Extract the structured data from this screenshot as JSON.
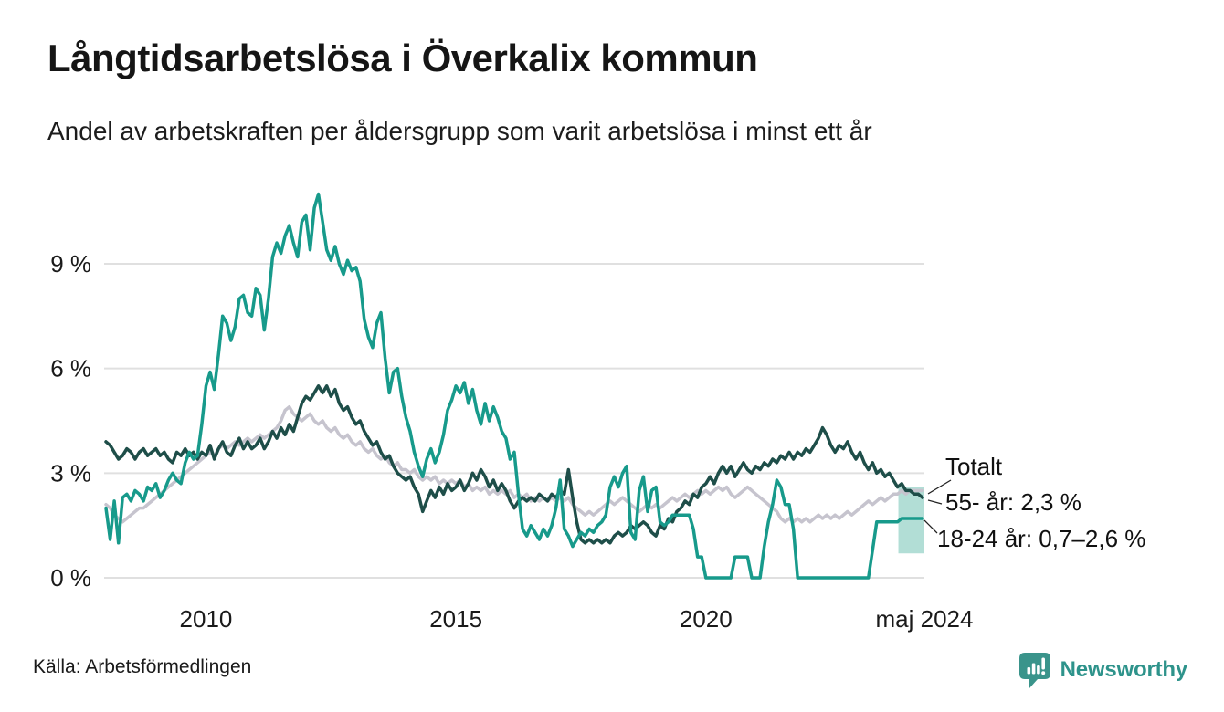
{
  "header": {
    "title": "Långtidsarbetslösa i Överkalix kommun",
    "subtitle": "Andel av arbetskraften per åldersgrupp som varit arbetslösa i minst ett år"
  },
  "footer": {
    "source": "Källa: Arbetsförmedlingen",
    "brand": "Newsworthy",
    "brand_color": "#2e938b"
  },
  "chart_data": {
    "type": "line",
    "title": "Långtidsarbetslösa i Överkalix kommun",
    "subtitle": "Andel av arbetskraften per åldersgrupp som varit arbetslösa i minst ett år",
    "x_unit": "decimal-year, monthly points Jan 2008 – May 2024",
    "x_start": 2008.0,
    "x_step": 0.0833333,
    "xlim": [
      2008.0,
      2024.37
    ],
    "ylim": [
      0,
      9
    ],
    "grid": true,
    "background": "#ffffff",
    "grid_color": "#e0e0e0",
    "y_ticks": [
      {
        "value": 0,
        "label": "0 %"
      },
      {
        "value": 3,
        "label": "3 %"
      },
      {
        "value": 6,
        "label": "6 %"
      },
      {
        "value": 9,
        "label": "9 %"
      }
    ],
    "x_ticks": [
      {
        "value": 2010,
        "label": "2010"
      },
      {
        "value": 2015,
        "label": "2015"
      },
      {
        "value": 2020,
        "label": "2020"
      },
      {
        "value": 2024.37,
        "label": "maj 2024"
      }
    ],
    "series": [
      {
        "name": "Totalt",
        "color": "#c6c4ce",
        "width": 3.5,
        "values": [
          2.1,
          2.0,
          1.8,
          1.7,
          1.6,
          1.7,
          1.8,
          1.9,
          2.0,
          2.0,
          2.1,
          2.2,
          2.3,
          2.4,
          2.5,
          2.6,
          2.7,
          2.8,
          2.9,
          3.0,
          3.1,
          3.2,
          3.3,
          3.4,
          3.5,
          3.6,
          3.5,
          3.7,
          3.8,
          3.7,
          3.8,
          3.9,
          3.8,
          3.9,
          4.0,
          3.9,
          4.0,
          4.1,
          4.0,
          4.1,
          4.2,
          4.3,
          4.5,
          4.8,
          4.9,
          4.7,
          4.6,
          4.5,
          4.6,
          4.7,
          4.5,
          4.4,
          4.5,
          4.3,
          4.2,
          4.3,
          4.1,
          4.0,
          4.1,
          3.9,
          3.8,
          3.9,
          3.7,
          3.6,
          3.7,
          3.5,
          3.4,
          3.5,
          3.3,
          3.2,
          3.3,
          3.1,
          3.1,
          3.0,
          3.1,
          2.9,
          2.8,
          2.9,
          2.8,
          2.9,
          2.7,
          2.8,
          2.7,
          2.8,
          2.7,
          2.8,
          2.6,
          2.7,
          2.5,
          2.6,
          2.5,
          2.6,
          2.4,
          2.5,
          2.4,
          2.5,
          2.4,
          2.5,
          2.3,
          2.4,
          2.3,
          2.4,
          2.2,
          2.3,
          2.2,
          2.3,
          2.2,
          2.3,
          2.2,
          2.3,
          2.2,
          2.3,
          2.1,
          2.0,
          1.9,
          1.8,
          1.9,
          1.8,
          1.9,
          2.0,
          2.1,
          2.2,
          2.1,
          2.2,
          2.3,
          2.2,
          2.1,
          2.0,
          1.9,
          2.0,
          2.1,
          2.0,
          2.1,
          2.0,
          2.1,
          2.2,
          2.3,
          2.2,
          2.3,
          2.4,
          2.3,
          2.4,
          2.5,
          2.4,
          2.5,
          2.4,
          2.5,
          2.6,
          2.5,
          2.6,
          2.4,
          2.3,
          2.4,
          2.5,
          2.6,
          2.5,
          2.4,
          2.3,
          2.2,
          2.1,
          2.0,
          1.9,
          1.7,
          1.6,
          1.7,
          1.6,
          1.7,
          1.6,
          1.7,
          1.6,
          1.7,
          1.8,
          1.7,
          1.8,
          1.7,
          1.8,
          1.7,
          1.8,
          1.9,
          1.8,
          1.9,
          2.0,
          2.1,
          2.2,
          2.1,
          2.2,
          2.3,
          2.2,
          2.3,
          2.4,
          2.4,
          2.5,
          2.4,
          2.5,
          2.5,
          2.5,
          2.5
        ]
      },
      {
        "name": "55- år",
        "color": "#1e4e49",
        "width": 3.5,
        "values": [
          3.9,
          3.8,
          3.6,
          3.4,
          3.5,
          3.7,
          3.6,
          3.4,
          3.6,
          3.7,
          3.5,
          3.6,
          3.7,
          3.5,
          3.6,
          3.4,
          3.3,
          3.6,
          3.5,
          3.7,
          3.5,
          3.6,
          3.4,
          3.6,
          3.5,
          3.8,
          3.4,
          3.7,
          3.9,
          3.6,
          3.5,
          3.8,
          4.0,
          3.7,
          3.9,
          3.7,
          3.8,
          4.0,
          3.7,
          3.9,
          4.2,
          4.0,
          4.3,
          4.1,
          4.4,
          4.2,
          4.6,
          5.0,
          5.2,
          5.1,
          5.3,
          5.5,
          5.3,
          5.5,
          5.2,
          5.4,
          5.0,
          4.8,
          4.9,
          4.6,
          4.4,
          4.5,
          4.2,
          4.0,
          3.8,
          3.9,
          3.6,
          3.4,
          3.5,
          3.2,
          3.0,
          2.9,
          2.8,
          2.9,
          2.6,
          2.4,
          1.9,
          2.2,
          2.5,
          2.3,
          2.6,
          2.4,
          2.7,
          2.5,
          2.6,
          2.8,
          2.5,
          2.7,
          3.0,
          2.8,
          3.1,
          2.9,
          2.6,
          2.8,
          2.5,
          2.7,
          2.5,
          2.2,
          2.0,
          2.2,
          2.3,
          2.2,
          2.3,
          2.2,
          2.4,
          2.3,
          2.2,
          2.4,
          2.3,
          2.5,
          2.4,
          3.1,
          2.3,
          1.6,
          1.1,
          1.0,
          1.1,
          1.0,
          1.1,
          1.0,
          1.1,
          1.0,
          1.2,
          1.3,
          1.2,
          1.3,
          1.5,
          1.4,
          1.5,
          1.6,
          1.5,
          1.3,
          1.2,
          1.5,
          1.4,
          1.7,
          1.6,
          1.9,
          2.0,
          2.2,
          2.1,
          2.4,
          2.3,
          2.6,
          2.7,
          2.9,
          2.7,
          3.0,
          3.2,
          3.0,
          3.2,
          2.9,
          3.1,
          3.3,
          3.1,
          3.0,
          3.2,
          3.1,
          3.3,
          3.2,
          3.4,
          3.3,
          3.5,
          3.4,
          3.6,
          3.4,
          3.6,
          3.5,
          3.7,
          3.6,
          3.8,
          4.0,
          4.3,
          4.1,
          3.8,
          3.6,
          3.8,
          3.7,
          3.9,
          3.6,
          3.4,
          3.6,
          3.3,
          3.1,
          3.3,
          3.0,
          3.1,
          2.9,
          3.0,
          2.8,
          2.6,
          2.7,
          2.5,
          2.5,
          2.4,
          2.4,
          2.3
        ]
      },
      {
        "name": "18-24 år",
        "color": "#179a8b",
        "width": 3.5,
        "values": [
          2.0,
          1.1,
          2.2,
          1.0,
          2.3,
          2.4,
          2.2,
          2.5,
          2.4,
          2.2,
          2.6,
          2.5,
          2.7,
          2.3,
          2.5,
          2.8,
          3.0,
          2.8,
          2.7,
          3.3,
          3.6,
          3.4,
          3.5,
          4.4,
          5.5,
          5.9,
          5.4,
          6.4,
          7.5,
          7.3,
          6.8,
          7.2,
          8.0,
          8.1,
          7.6,
          7.5,
          8.3,
          8.1,
          7.1,
          8.0,
          9.2,
          9.6,
          9.3,
          9.8,
          10.1,
          9.6,
          9.2,
          10.2,
          10.4,
          9.4,
          10.6,
          11.0,
          10.2,
          9.4,
          9.1,
          9.5,
          9.0,
          8.7,
          9.1,
          8.8,
          8.9,
          8.5,
          7.4,
          6.9,
          6.6,
          7.3,
          7.6,
          6.3,
          5.3,
          5.9,
          6.0,
          5.2,
          4.6,
          4.2,
          3.6,
          3.2,
          2.9,
          3.4,
          3.7,
          3.3,
          3.6,
          4.1,
          4.8,
          5.1,
          5.5,
          5.3,
          5.6,
          5.0,
          5.4,
          4.8,
          4.4,
          5.0,
          4.5,
          4.9,
          4.6,
          4.2,
          4.0,
          3.4,
          3.6,
          2.4,
          1.4,
          1.2,
          1.5,
          1.3,
          1.1,
          1.4,
          1.2,
          1.5,
          2.0,
          2.8,
          1.4,
          1.2,
          0.9,
          1.1,
          1.3,
          1.2,
          1.4,
          1.3,
          1.5,
          1.6,
          1.8,
          2.6,
          2.9,
          2.6,
          3.0,
          3.2,
          1.3,
          1.1,
          2.5,
          2.9,
          1.9,
          2.5,
          2.6,
          1.6,
          1.5,
          1.6,
          1.8,
          1.8,
          1.8,
          1.8,
          1.8,
          1.4,
          0.6,
          0.6,
          0.0,
          0.0,
          0.0,
          0.0,
          0.0,
          0.0,
          0.0,
          0.6,
          0.6,
          0.6,
          0.6,
          0.0,
          0.0,
          0.0,
          0.9,
          1.6,
          2.1,
          2.8,
          2.6,
          2.1,
          2.1,
          1.4,
          0.0,
          0.0,
          0.0,
          0.0,
          0.0,
          0.0,
          0.0,
          0.0,
          0.0,
          0.0,
          0.0,
          0.0,
          0.0,
          0.0,
          0.0,
          0.0,
          0.0,
          0.0,
          0.8,
          1.6,
          1.6,
          1.6,
          1.6,
          1.6,
          1.6,
          1.7,
          1.7,
          1.7,
          1.7,
          1.7,
          1.7
        ]
      }
    ],
    "uncertainty_band": {
      "series": "18-24 år",
      "x_from": 2023.85,
      "x_to": 2024.37,
      "value_low": 0.7,
      "value_high": 2.6,
      "color": "#b2ded6"
    },
    "annotations": [
      {
        "id": "totalt",
        "label": "Totalt"
      },
      {
        "id": "older",
        "label": "55- år: 2,3 %"
      },
      {
        "id": "youth",
        "label": "18-24 år: 0,7–2,6 %"
      }
    ],
    "legend_position": "right-of-line-ends"
  }
}
